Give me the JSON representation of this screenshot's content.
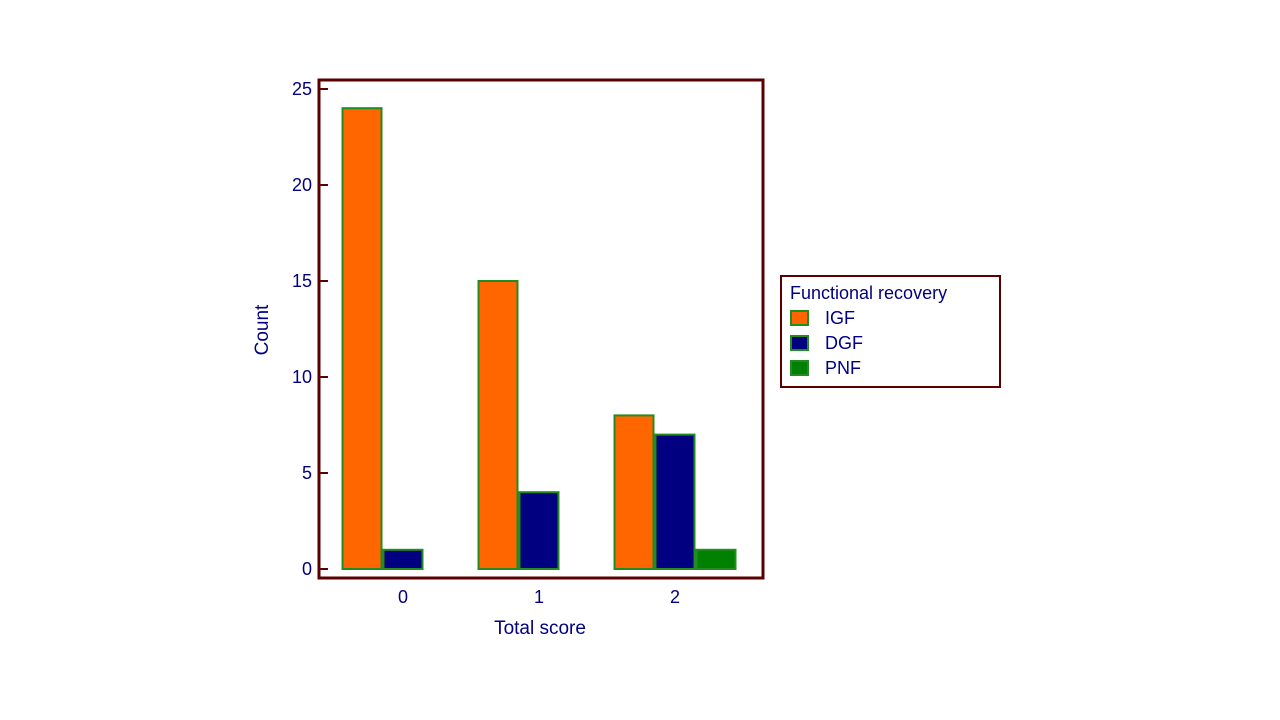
{
  "chart_data": {
    "type": "bar",
    "title": "",
    "xlabel": "Total score",
    "ylabel": "Count",
    "categories": [
      "0",
      "1",
      "2"
    ],
    "series": [
      {
        "name": "IGF",
        "values": [
          24,
          15,
          8
        ],
        "color": "#ff6600"
      },
      {
        "name": "DGF",
        "values": [
          1,
          4,
          7
        ],
        "color": "#000080"
      },
      {
        "name": "PNF",
        "values": [
          0,
          0,
          1
        ],
        "color": "#008000"
      }
    ],
    "ylim": [
      0,
      25
    ],
    "yticks": [
      "0",
      "5",
      "10",
      "15",
      "20",
      "25"
    ],
    "grid": false,
    "legend": {
      "title": "Functional recovery",
      "placement": "right"
    },
    "colors": {
      "frame": "#5a0000",
      "bar_outline": "#228b22",
      "text": "#000080"
    }
  }
}
